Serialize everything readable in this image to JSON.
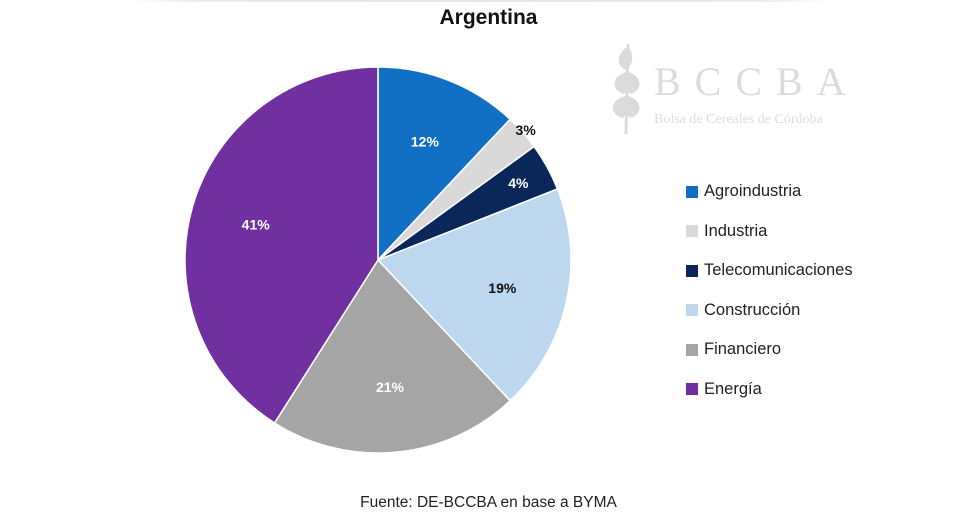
{
  "chart_data": {
    "type": "pie",
    "title": "Argentina",
    "slices": [
      {
        "label": "Agroindustria",
        "value": 12,
        "display": "12%",
        "color": "#1170c3",
        "text_color": "#ffffff"
      },
      {
        "label": "Industria",
        "value": 3,
        "display": "3%",
        "color": "#d9d9d9",
        "text_color": "#111111"
      },
      {
        "label": "Telecomunicaciones",
        "value": 4,
        "display": "4%",
        "color": "#0b2659",
        "text_color": "#ffffff"
      },
      {
        "label": "Construcción",
        "value": 19,
        "display": "19%",
        "color": "#bdd7ee",
        "text_color": "#111111"
      },
      {
        "label": "Financiero",
        "value": 21,
        "display": "21%",
        "color": "#a5a5a5",
        "text_color": "#ffffff"
      },
      {
        "label": "Energía",
        "value": 41,
        "display": "41%",
        "color": "#7030a0",
        "text_color": "#ffffff"
      }
    ],
    "legend_position": "right",
    "start_angle": "12 o'clock, clockwise"
  },
  "source_note": "Fuente: DE-BCCBA en base a BYMA",
  "watermark": {
    "logo_text": "BCCBA",
    "subtitle": "Bolsa de Cereales de Córdoba",
    "icon": "wheat-icon"
  }
}
